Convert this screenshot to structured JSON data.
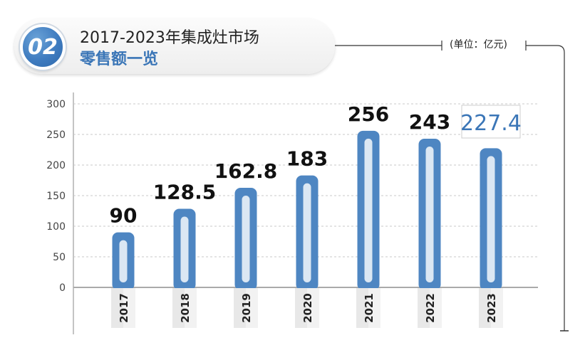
{
  "header": {
    "badge": "02",
    "title_line1": "2017-2023年集成灶市场",
    "title_line2": "零售额一览",
    "unit": "(单位：亿元)"
  },
  "chart_data": {
    "type": "bar",
    "categories": [
      "2017",
      "2018",
      "2019",
      "2020",
      "2021",
      "2022",
      "2023"
    ],
    "values": [
      90,
      128.5,
      162.8,
      183,
      256,
      243,
      227.4
    ],
    "value_labels": [
      "90",
      "128.5",
      "162.8",
      "183",
      "256",
      "243",
      "227.4"
    ],
    "title": "2017-2023年集成灶市场零售额一览",
    "ylim": [
      0,
      300
    ],
    "yticks": [
      "0",
      "50",
      "100",
      "150",
      "200",
      "250",
      "300"
    ],
    "grid": true,
    "highlight_index": 6,
    "colors": {
      "bar": "#4e86c2",
      "bar_inner": "#dbe7f3",
      "highlight_text": "#3b76b7",
      "grid": "#c9c9c9",
      "axis": "#b0b0b0"
    }
  }
}
